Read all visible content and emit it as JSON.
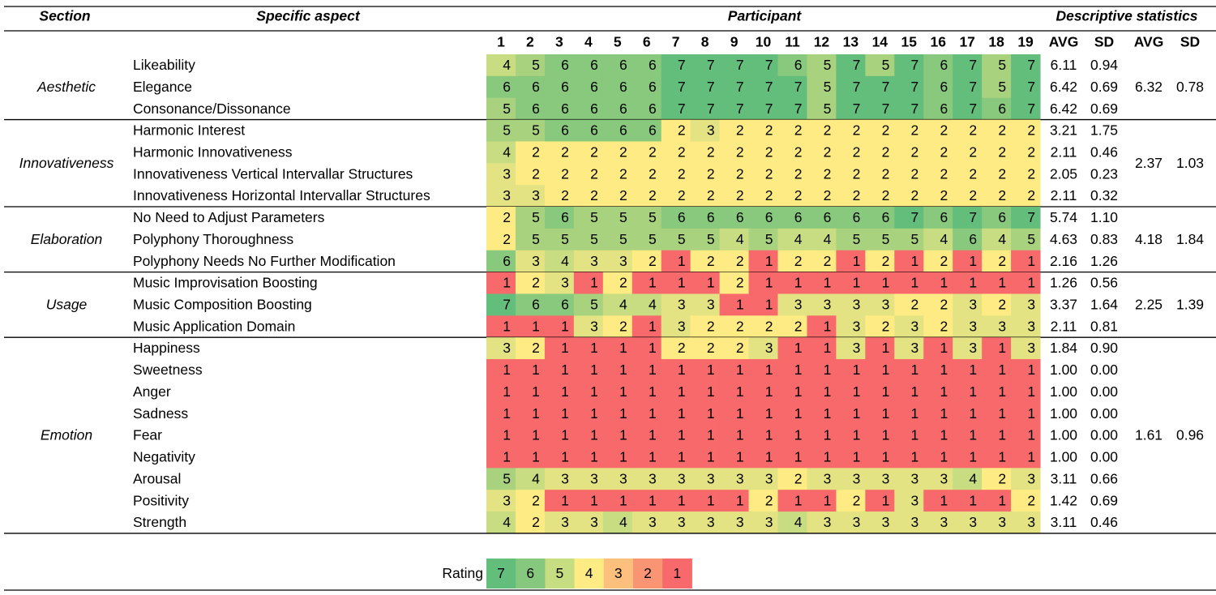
{
  "header": {
    "section": "Section",
    "aspect": "Specific aspect",
    "participant": "Participant",
    "stats": "Descriptive statistics"
  },
  "participants": [
    1,
    2,
    3,
    4,
    5,
    6,
    7,
    8,
    9,
    10,
    11,
    12,
    13,
    14,
    15,
    16,
    17,
    18,
    19
  ],
  "stat_headers": [
    "AVG",
    "SD",
    "AVG",
    "SD"
  ],
  "cell_colors": [
    "#f8696b",
    "#ffeb84",
    "#e3e383",
    "#c8dc81",
    "#a9d27f",
    "#88c97d",
    "#63be7b"
  ],
  "sections": [
    {
      "name": "Aesthetic",
      "avg": "6.32",
      "sd": "0.78",
      "rows": [
        {
          "aspect": "Likeability",
          "ratings": [
            4,
            5,
            6,
            6,
            6,
            6,
            7,
            7,
            7,
            7,
            6,
            5,
            7,
            5,
            7,
            6,
            7,
            5,
            7
          ],
          "avg": "6.11",
          "sd": "0.94"
        },
        {
          "aspect": "Elegance",
          "ratings": [
            6,
            6,
            6,
            6,
            6,
            6,
            7,
            7,
            7,
            7,
            7,
            5,
            7,
            7,
            7,
            6,
            7,
            5,
            7
          ],
          "avg": "6.42",
          "sd": "0.69"
        },
        {
          "aspect": "Consonance/Dissonance",
          "ratings": [
            5,
            6,
            6,
            6,
            6,
            6,
            7,
            7,
            7,
            7,
            7,
            5,
            7,
            7,
            7,
            6,
            7,
            6,
            7
          ],
          "avg": "6.42",
          "sd": "0.69"
        }
      ]
    },
    {
      "name": "Innovativeness",
      "avg": "2.37",
      "sd": "1.03",
      "rows": [
        {
          "aspect": "Harmonic Interest",
          "ratings": [
            5,
            5,
            6,
            6,
            6,
            6,
            2,
            3,
            2,
            2,
            2,
            2,
            2,
            2,
            2,
            2,
            2,
            2,
            2
          ],
          "avg": "3.21",
          "sd": "1.75"
        },
        {
          "aspect": "Harmonic Innovativeness",
          "ratings": [
            4,
            2,
            2,
            2,
            2,
            2,
            2,
            2,
            2,
            2,
            2,
            2,
            2,
            2,
            2,
            2,
            2,
            2,
            2
          ],
          "avg": "2.11",
          "sd": "0.46"
        },
        {
          "aspect": "Innovativeness Vertical Intervallar Structures",
          "ratings": [
            3,
            2,
            2,
            2,
            2,
            2,
            2,
            2,
            2,
            2,
            2,
            2,
            2,
            2,
            2,
            2,
            2,
            2,
            2
          ],
          "avg": "2.05",
          "sd": "0.23"
        },
        {
          "aspect": "Innovativeness Horizontal Intervallar Structures",
          "ratings": [
            3,
            3,
            2,
            2,
            2,
            2,
            2,
            2,
            2,
            2,
            2,
            2,
            2,
            2,
            2,
            2,
            2,
            2,
            2
          ],
          "avg": "2.11",
          "sd": "0.32"
        }
      ]
    },
    {
      "name": "Elaboration",
      "avg": "4.18",
      "sd": "1.84",
      "rows": [
        {
          "aspect": "No Need to Adjust Parameters",
          "ratings": [
            2,
            5,
            6,
            5,
            5,
            5,
            6,
            6,
            6,
            6,
            6,
            6,
            6,
            6,
            7,
            6,
            7,
            6,
            7
          ],
          "avg": "5.74",
          "sd": "1.10"
        },
        {
          "aspect": "Polyphony Thoroughness",
          "ratings": [
            2,
            5,
            5,
            5,
            5,
            5,
            5,
            5,
            4,
            5,
            4,
            4,
            5,
            5,
            5,
            4,
            6,
            4,
            5
          ],
          "avg": "4.63",
          "sd": "0.83"
        },
        {
          "aspect": "Polyphony Needs No Further Modification",
          "ratings": [
            6,
            3,
            4,
            3,
            3,
            2,
            1,
            2,
            2,
            1,
            2,
            2,
            1,
            2,
            1,
            2,
            1,
            2,
            1
          ],
          "avg": "2.16",
          "sd": "1.26"
        }
      ]
    },
    {
      "name": "Usage",
      "avg": "2.25",
      "sd": "1.39",
      "rows": [
        {
          "aspect": "Music Improvisation Boosting",
          "ratings": [
            1,
            2,
            3,
            1,
            2,
            1,
            1,
            1,
            2,
            1,
            1,
            1,
            1,
            1,
            1,
            1,
            1,
            1,
            1
          ],
          "avg": "1.26",
          "sd": "0.56"
        },
        {
          "aspect": "Music Composition Boosting",
          "ratings": [
            7,
            6,
            6,
            5,
            4,
            4,
            3,
            3,
            1,
            1,
            3,
            3,
            3,
            3,
            2,
            2,
            3,
            2,
            3
          ],
          "avg": "3.37",
          "sd": "1.64"
        },
        {
          "aspect": "Music Application Domain",
          "ratings": [
            1,
            1,
            1,
            3,
            2,
            1,
            3,
            2,
            2,
            2,
            2,
            1,
            3,
            2,
            3,
            2,
            3,
            3,
            3
          ],
          "avg": "2.11",
          "sd": "0.81"
        }
      ]
    },
    {
      "name": "Emotion",
      "avg": "1.61",
      "sd": "0.96",
      "rows": [
        {
          "aspect": "Happiness",
          "ratings": [
            3,
            2,
            1,
            1,
            1,
            1,
            2,
            2,
            2,
            3,
            1,
            1,
            3,
            1,
            3,
            1,
            3,
            1,
            3
          ],
          "avg": "1.84",
          "sd": "0.90"
        },
        {
          "aspect": "Sweetness",
          "ratings": [
            1,
            1,
            1,
            1,
            1,
            1,
            1,
            1,
            1,
            1,
            1,
            1,
            1,
            1,
            1,
            1,
            1,
            1,
            1
          ],
          "avg": "1.00",
          "sd": "0.00"
        },
        {
          "aspect": "Anger",
          "ratings": [
            1,
            1,
            1,
            1,
            1,
            1,
            1,
            1,
            1,
            1,
            1,
            1,
            1,
            1,
            1,
            1,
            1,
            1,
            1
          ],
          "avg": "1.00",
          "sd": "0.00"
        },
        {
          "aspect": "Sadness",
          "ratings": [
            1,
            1,
            1,
            1,
            1,
            1,
            1,
            1,
            1,
            1,
            1,
            1,
            1,
            1,
            1,
            1,
            1,
            1,
            1
          ],
          "avg": "1.00",
          "sd": "0.00"
        },
        {
          "aspect": "Fear",
          "ratings": [
            1,
            1,
            1,
            1,
            1,
            1,
            1,
            1,
            1,
            1,
            1,
            1,
            1,
            1,
            1,
            1,
            1,
            1,
            1
          ],
          "avg": "1.00",
          "sd": "0.00"
        },
        {
          "aspect": "Negativity",
          "ratings": [
            1,
            1,
            1,
            1,
            1,
            1,
            1,
            1,
            1,
            1,
            1,
            1,
            1,
            1,
            1,
            1,
            1,
            1,
            1
          ],
          "avg": "1.00",
          "sd": "0.00"
        },
        {
          "aspect": "Arousal",
          "ratings": [
            5,
            4,
            3,
            3,
            3,
            3,
            3,
            3,
            3,
            3,
            2,
            3,
            3,
            3,
            3,
            3,
            4,
            2,
            3
          ],
          "avg": "3.11",
          "sd": "0.66"
        },
        {
          "aspect": "Positivity",
          "ratings": [
            3,
            2,
            1,
            1,
            1,
            1,
            1,
            1,
            1,
            2,
            1,
            1,
            2,
            1,
            3,
            1,
            1,
            1,
            2
          ],
          "avg": "1.42",
          "sd": "0.69"
        },
        {
          "aspect": "Strength",
          "ratings": [
            4,
            2,
            3,
            3,
            4,
            3,
            3,
            3,
            3,
            3,
            4,
            3,
            3,
            3,
            3,
            3,
            3,
            3,
            3
          ],
          "avg": "3.11",
          "sd": "0.46"
        }
      ]
    }
  ],
  "legend": {
    "label": "Rating",
    "items": [
      7,
      6,
      5,
      4,
      3,
      2,
      1
    ],
    "colors": [
      "#63be7b",
      "#86c97e",
      "#c6dd81",
      "#ffeb84",
      "#fcc07c",
      "#f99572",
      "#f8696b"
    ]
  }
}
